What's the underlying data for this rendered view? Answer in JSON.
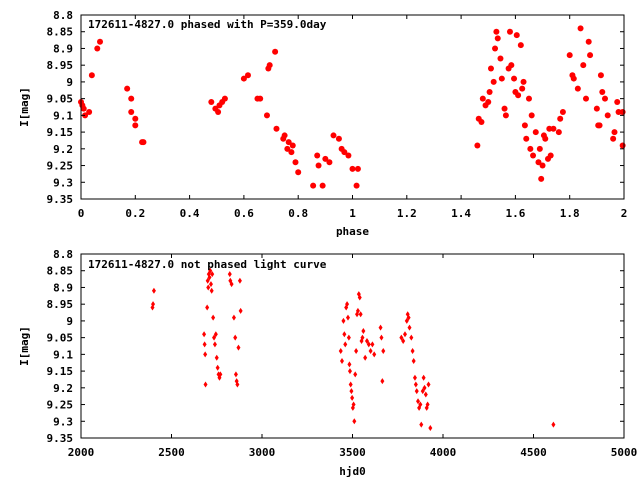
{
  "chart_data": [
    {
      "type": "scatter",
      "title": "172611-4827.0 phased with P=359.0day",
      "xlabel": "phase",
      "ylabel": "I[mag]",
      "xlim": [
        0,
        2
      ],
      "ylim": [
        9.35,
        8.8
      ],
      "y_inverted": true,
      "grid": false,
      "marker_color": "#ff0000",
      "marker": "filled-circle",
      "x_ticks": [
        0,
        0.2,
        0.4,
        0.6,
        0.8,
        1,
        1.2,
        1.4,
        1.6,
        1.8,
        2
      ],
      "x_tick_labels": [
        "0",
        "0.2",
        "0.4",
        "0.6",
        "0.8",
        "1",
        "1.2",
        "1.4",
        "1.6",
        "1.8",
        "2"
      ],
      "y_ticks": [
        8.8,
        8.85,
        8.9,
        8.95,
        9.0,
        9.05,
        9.1,
        9.15,
        9.2,
        9.25,
        9.3,
        9.35
      ],
      "y_tick_labels": [
        "8.8",
        "8.85",
        "8.9",
        "8.95",
        "9",
        "9.05",
        "9.1",
        "9.15",
        "9.2",
        "9.25",
        "9.3",
        "9.35"
      ],
      "points": [
        [
          0.0,
          9.06
        ],
        [
          0.005,
          9.07
        ],
        [
          0.01,
          9.08
        ],
        [
          0.015,
          9.1
        ],
        [
          0.03,
          9.09
        ],
        [
          0.04,
          8.98
        ],
        [
          0.06,
          8.9
        ],
        [
          0.07,
          8.88
        ],
        [
          0.17,
          9.02
        ],
        [
          0.185,
          9.05
        ],
        [
          0.185,
          9.09
        ],
        [
          0.2,
          9.11
        ],
        [
          0.2,
          9.13
        ],
        [
          0.225,
          9.18
        ],
        [
          0.23,
          9.18
        ],
        [
          0.48,
          9.06
        ],
        [
          0.495,
          9.08
        ],
        [
          0.505,
          9.09
        ],
        [
          0.51,
          9.07
        ],
        [
          0.52,
          9.06
        ],
        [
          0.53,
          9.05
        ],
        [
          0.6,
          8.99
        ],
        [
          0.615,
          8.98
        ],
        [
          0.65,
          9.05
        ],
        [
          0.66,
          9.05
        ],
        [
          0.685,
          9.1
        ],
        [
          0.69,
          8.96
        ],
        [
          0.695,
          8.95
        ],
        [
          0.715,
          8.91
        ],
        [
          0.72,
          9.14
        ],
        [
          0.745,
          9.17
        ],
        [
          0.75,
          9.16
        ],
        [
          0.76,
          9.2
        ],
        [
          0.765,
          9.18
        ],
        [
          0.775,
          9.21
        ],
        [
          0.78,
          9.19
        ],
        [
          0.79,
          9.24
        ],
        [
          0.8,
          9.27
        ],
        [
          0.855,
          9.31
        ],
        [
          0.87,
          9.22
        ],
        [
          0.875,
          9.25
        ],
        [
          0.89,
          9.31
        ],
        [
          0.9,
          9.23
        ],
        [
          0.915,
          9.24
        ],
        [
          0.93,
          9.16
        ],
        [
          0.95,
          9.17
        ],
        [
          0.96,
          9.2
        ],
        [
          0.97,
          9.21
        ],
        [
          0.985,
          9.22
        ],
        [
          1.0,
          9.26
        ],
        [
          1.015,
          9.31
        ],
        [
          1.02,
          9.26
        ],
        [
          1.46,
          9.19
        ],
        [
          1.465,
          9.11
        ],
        [
          1.475,
          9.12
        ],
        [
          1.48,
          9.05
        ],
        [
          1.49,
          9.07
        ],
        [
          1.5,
          9.06
        ],
        [
          1.505,
          9.03
        ],
        [
          1.51,
          8.96
        ],
        [
          1.52,
          9.0
        ],
        [
          1.525,
          8.9
        ],
        [
          1.53,
          8.85
        ],
        [
          1.535,
          8.87
        ],
        [
          1.545,
          8.93
        ],
        [
          1.55,
          8.99
        ],
        [
          1.56,
          9.08
        ],
        [
          1.565,
          9.1
        ],
        [
          1.575,
          8.96
        ],
        [
          1.58,
          8.85
        ],
        [
          1.585,
          8.95
        ],
        [
          1.595,
          8.99
        ],
        [
          1.6,
          9.03
        ],
        [
          1.605,
          8.86
        ],
        [
          1.61,
          9.04
        ],
        [
          1.62,
          8.89
        ],
        [
          1.625,
          9.02
        ],
        [
          1.63,
          9.0
        ],
        [
          1.635,
          9.13
        ],
        [
          1.64,
          9.17
        ],
        [
          1.65,
          9.05
        ],
        [
          1.655,
          9.2
        ],
        [
          1.66,
          9.1
        ],
        [
          1.665,
          9.22
        ],
        [
          1.675,
          9.15
        ],
        [
          1.685,
          9.24
        ],
        [
          1.69,
          9.2
        ],
        [
          1.695,
          9.29
        ],
        [
          1.7,
          9.25
        ],
        [
          1.705,
          9.16
        ],
        [
          1.71,
          9.17
        ],
        [
          1.72,
          9.23
        ],
        [
          1.725,
          9.14
        ],
        [
          1.73,
          9.22
        ],
        [
          1.74,
          9.14
        ],
        [
          1.76,
          9.15
        ],
        [
          1.765,
          9.11
        ],
        [
          1.775,
          9.09
        ],
        [
          1.8,
          8.92
        ],
        [
          1.81,
          8.98
        ],
        [
          1.815,
          8.99
        ],
        [
          1.83,
          9.02
        ],
        [
          1.84,
          8.84
        ],
        [
          1.85,
          8.95
        ],
        [
          1.86,
          9.05
        ],
        [
          1.87,
          8.88
        ],
        [
          1.875,
          8.92
        ],
        [
          1.9,
          9.08
        ],
        [
          1.905,
          9.13
        ],
        [
          1.91,
          9.13
        ],
        [
          1.915,
          8.98
        ],
        [
          1.92,
          9.03
        ],
        [
          1.93,
          9.05
        ],
        [
          1.94,
          9.1
        ],
        [
          1.96,
          9.17
        ],
        [
          1.965,
          9.15
        ],
        [
          1.975,
          9.06
        ],
        [
          1.98,
          9.09
        ],
        [
          1.995,
          9.09
        ],
        [
          1.995,
          9.19
        ]
      ]
    },
    {
      "type": "scatter",
      "title": "172611-4827.0 not phased light curve",
      "xlabel": "hjd0",
      "ylabel": "I[mag]",
      "xlim": [
        2000,
        5000
      ],
      "ylim": [
        9.35,
        8.8
      ],
      "y_inverted": true,
      "grid": false,
      "marker_color": "#ff0000",
      "marker": "small-diamond",
      "x_ticks": [
        2000,
        2500,
        3000,
        3500,
        4000,
        4500,
        5000
      ],
      "x_tick_labels": [
        "2000",
        "2500",
        "3000",
        "3500",
        "4000",
        "4500",
        "5000"
      ],
      "y_ticks": [
        8.8,
        8.85,
        8.9,
        8.95,
        9.0,
        9.05,
        9.1,
        9.15,
        9.2,
        9.25,
        9.3,
        9.35
      ],
      "y_tick_labels": [
        "8.8",
        "8.85",
        "8.9",
        "8.95",
        "9",
        "9.05",
        "9.1",
        "9.15",
        "9.2",
        "9.25",
        "9.3",
        "9.35"
      ],
      "points": [
        [
          2395,
          8.96
        ],
        [
          2398,
          8.95
        ],
        [
          2403,
          8.91
        ],
        [
          2680,
          9.04
        ],
        [
          2683,
          9.07
        ],
        [
          2686,
          9.1
        ],
        [
          2688,
          9.19
        ],
        [
          2697,
          8.96
        ],
        [
          2700,
          8.88
        ],
        [
          2703,
          8.9
        ],
        [
          2706,
          8.86
        ],
        [
          2710,
          8.87
        ],
        [
          2714,
          8.85
        ],
        [
          2718,
          8.89
        ],
        [
          2722,
          8.91
        ],
        [
          2725,
          8.86
        ],
        [
          2730,
          8.99
        ],
        [
          2735,
          9.05
        ],
        [
          2740,
          9.07
        ],
        [
          2745,
          9.04
        ],
        [
          2750,
          9.11
        ],
        [
          2755,
          9.14
        ],
        [
          2760,
          9.16
        ],
        [
          2765,
          9.17
        ],
        [
          2770,
          9.16
        ],
        [
          2822,
          8.86
        ],
        [
          2825,
          8.88
        ],
        [
          2832,
          8.89
        ],
        [
          2845,
          8.99
        ],
        [
          2852,
          9.05
        ],
        [
          2856,
          9.16
        ],
        [
          2860,
          9.18
        ],
        [
          2864,
          9.19
        ],
        [
          2870,
          9.08
        ],
        [
          2878,
          8.88
        ],
        [
          2882,
          8.97
        ],
        [
          3435,
          9.09
        ],
        [
          3442,
          9.12
        ],
        [
          3450,
          9.0
        ],
        [
          3455,
          9.04
        ],
        [
          3460,
          9.07
        ],
        [
          3465,
          8.96
        ],
        [
          3470,
          8.95
        ],
        [
          3475,
          8.99
        ],
        [
          3480,
          9.05
        ],
        [
          3483,
          9.13
        ],
        [
          3486,
          9.15
        ],
        [
          3490,
          9.19
        ],
        [
          3494,
          9.21
        ],
        [
          3498,
          9.23
        ],
        [
          3502,
          9.26
        ],
        [
          3506,
          9.25
        ],
        [
          3510,
          9.3
        ],
        [
          3515,
          9.16
        ],
        [
          3520,
          9.09
        ],
        [
          3525,
          8.98
        ],
        [
          3530,
          8.97
        ],
        [
          3535,
          8.92
        ],
        [
          3540,
          8.93
        ],
        [
          3545,
          8.98
        ],
        [
          3550,
          9.06
        ],
        [
          3555,
          9.05
        ],
        [
          3560,
          9.03
        ],
        [
          3570,
          9.11
        ],
        [
          3580,
          9.06
        ],
        [
          3590,
          9.07
        ],
        [
          3600,
          9.09
        ],
        [
          3610,
          9.07
        ],
        [
          3620,
          9.1
        ],
        [
          3655,
          9.02
        ],
        [
          3660,
          9.05
        ],
        [
          3665,
          9.18
        ],
        [
          3670,
          9.09
        ],
        [
          3770,
          9.05
        ],
        [
          3780,
          9.06
        ],
        [
          3790,
          9.04
        ],
        [
          3800,
          9.0
        ],
        [
          3805,
          8.98
        ],
        [
          3810,
          8.99
        ],
        [
          3815,
          9.02
        ],
        [
          3825,
          9.05
        ],
        [
          3832,
          9.09
        ],
        [
          3838,
          9.12
        ],
        [
          3845,
          9.17
        ],
        [
          3850,
          9.19
        ],
        [
          3855,
          9.21
        ],
        [
          3862,
          9.24
        ],
        [
          3868,
          9.26
        ],
        [
          3875,
          9.25
        ],
        [
          3880,
          9.31
        ],
        [
          3888,
          9.21
        ],
        [
          3893,
          9.17
        ],
        [
          3898,
          9.2
        ],
        [
          3905,
          9.22
        ],
        [
          3910,
          9.26
        ],
        [
          3915,
          9.25
        ],
        [
          3920,
          9.19
        ],
        [
          3930,
          9.32
        ],
        [
          4610,
          9.31
        ]
      ]
    }
  ]
}
